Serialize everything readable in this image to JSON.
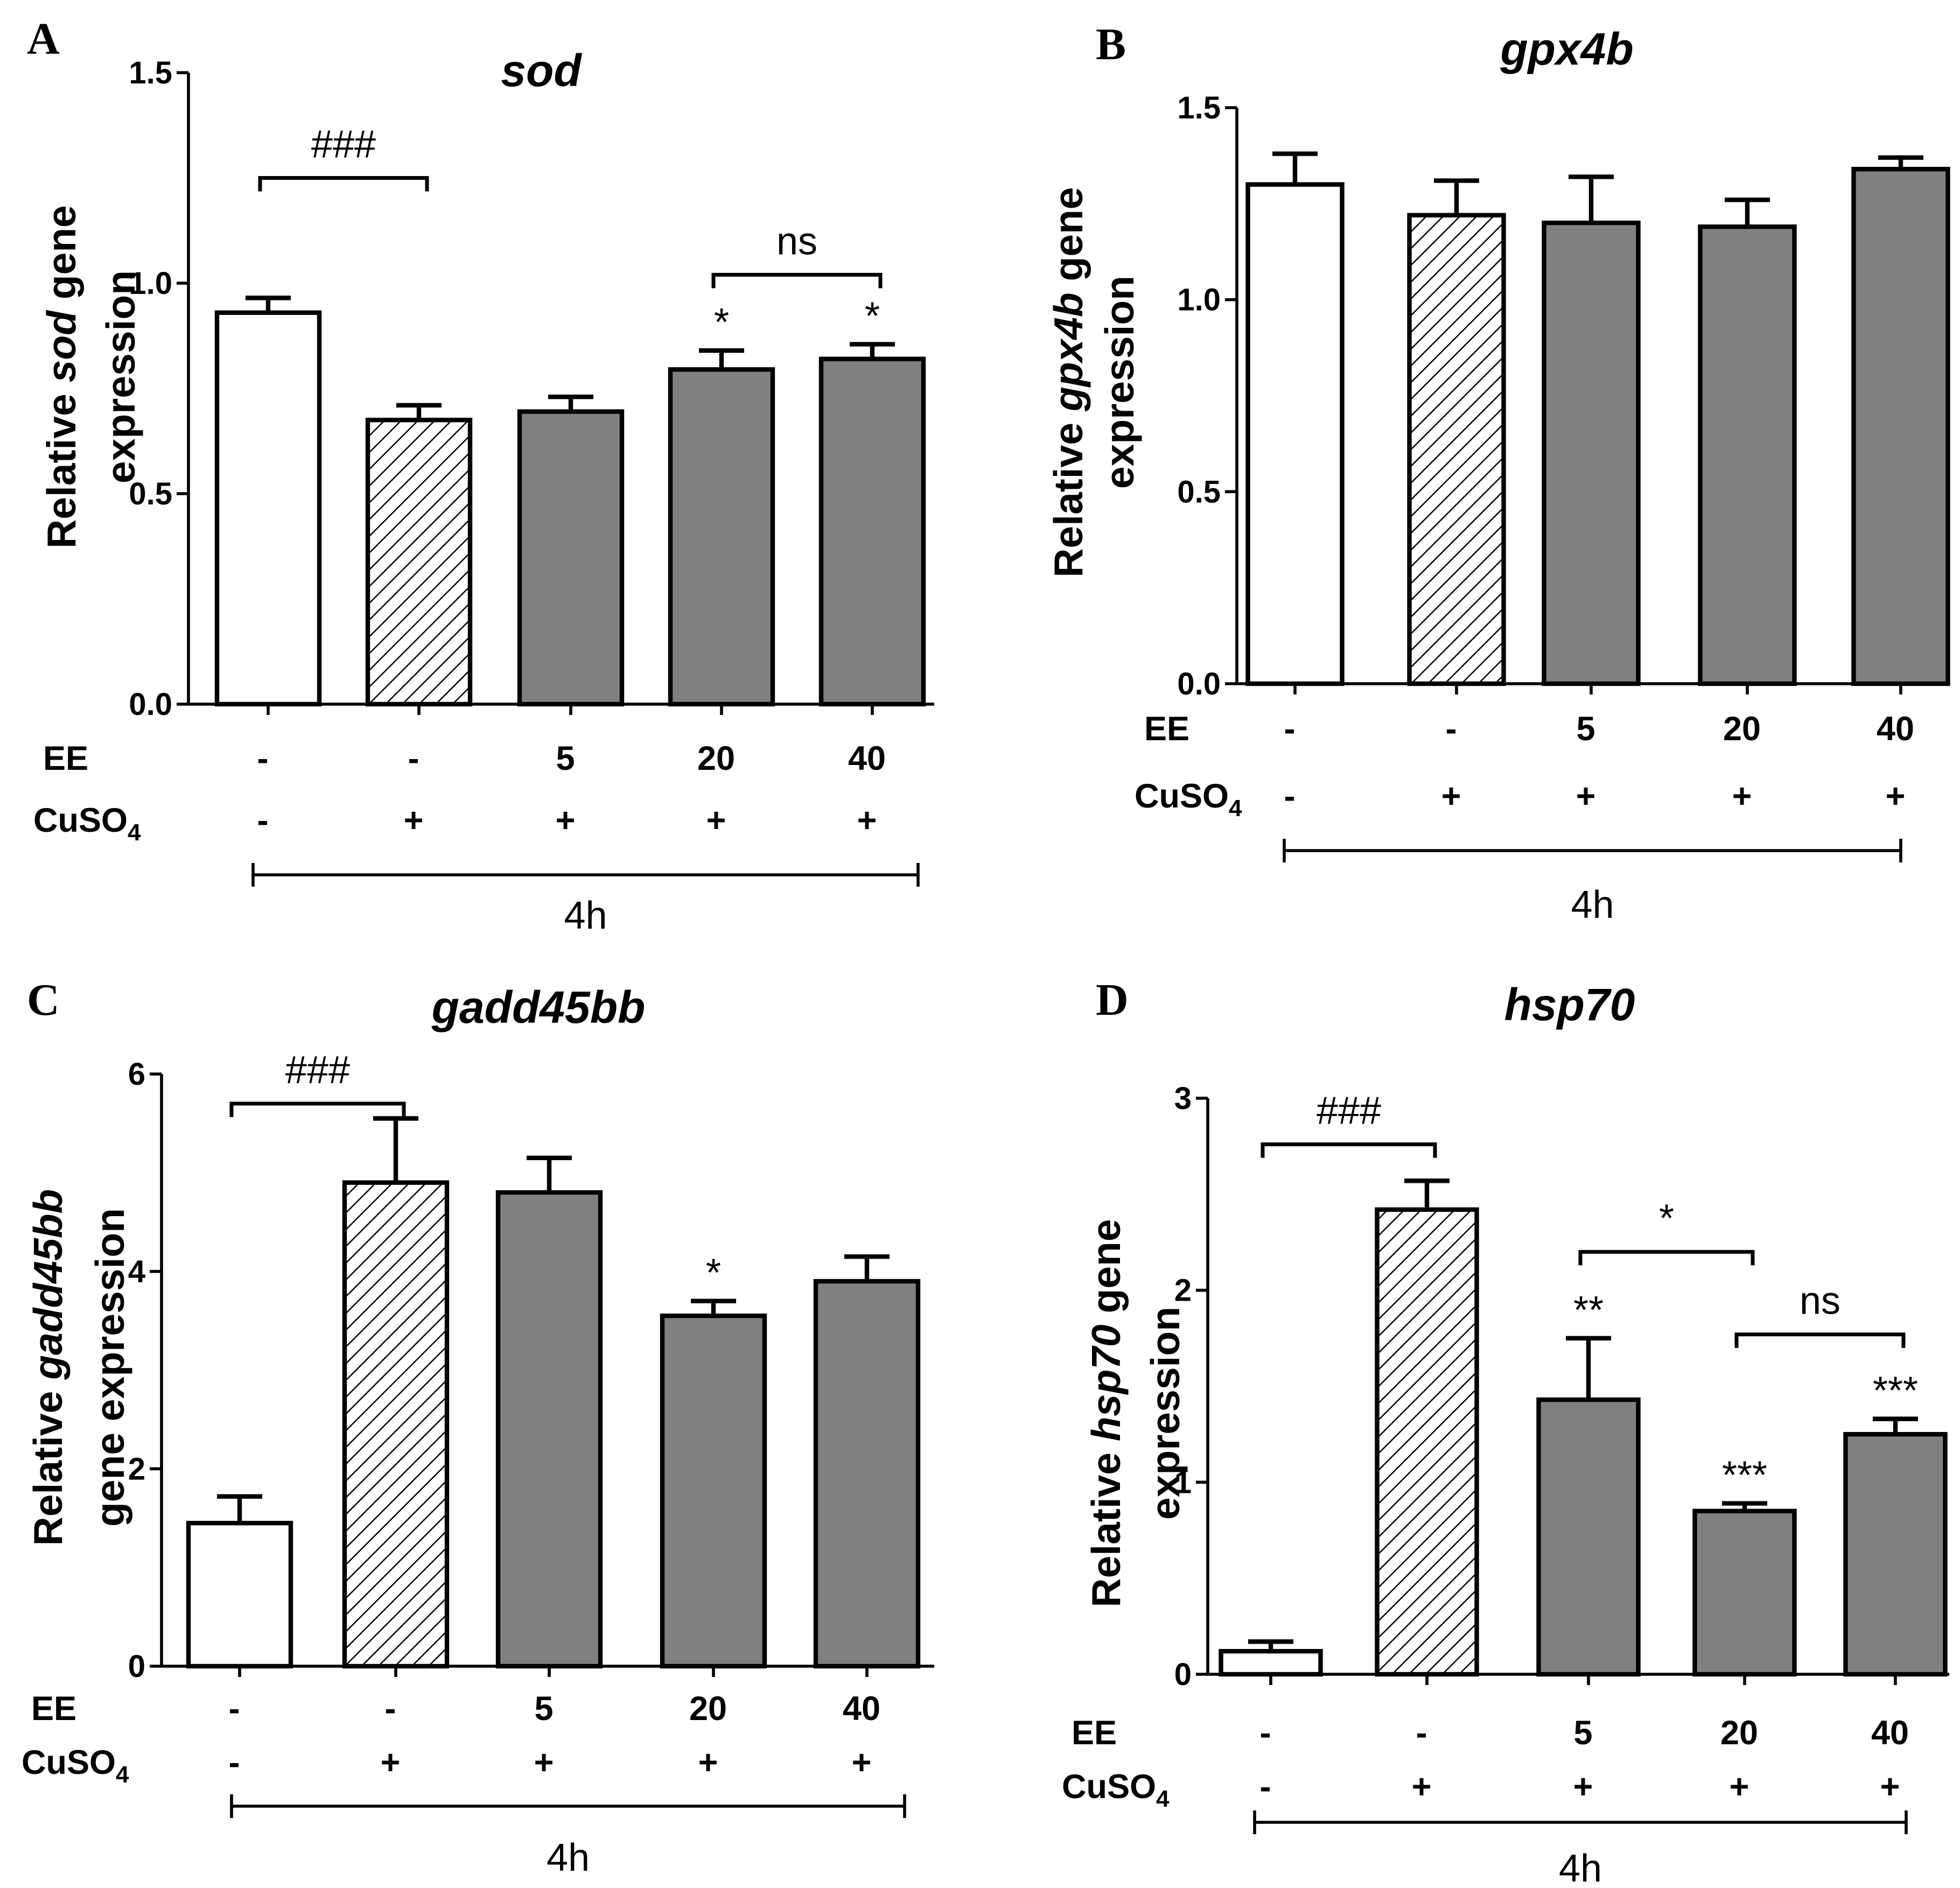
{
  "figure": {
    "x_row_labels": {
      "ee": "EE",
      "cuso4_main": "CuSO",
      "cuso4_sub": "4"
    },
    "time_label": "4h"
  },
  "colors": {
    "control": "#ffffff",
    "treated": "#808080",
    "hatch": "#000000"
  },
  "chart_data": [
    {
      "panel": "A",
      "type": "bar",
      "title": "sod",
      "ylabel_parts": [
        {
          "text": "Relative ",
          "italic": false
        },
        {
          "text": "sod",
          "italic": true
        },
        {
          "text": " gene",
          "italic": false
        }
      ],
      "ylabel_line2": "expression",
      "ylim": [
        0,
        1.5
      ],
      "yticks": [
        "0.0",
        "0.5",
        "1.0",
        "1.5"
      ],
      "ytick_values": [
        0,
        0.5,
        1.0,
        1.5
      ],
      "categories": [
        "1",
        "2",
        "3",
        "4",
        "5"
      ],
      "ee": [
        "-",
        "-",
        "5",
        "20",
        "40"
      ],
      "cuso4": [
        "-",
        "+",
        "+",
        "+",
        "+"
      ],
      "fill": [
        "white",
        "hatch",
        "gray",
        "gray",
        "gray"
      ],
      "values": [
        0.93,
        0.675,
        0.695,
        0.795,
        0.82
      ],
      "errors": [
        0.035,
        0.035,
        0.035,
        0.045,
        0.035
      ],
      "star_labels": [
        "",
        "",
        "",
        "*",
        "*"
      ],
      "brackets": [
        {
          "from": 1,
          "to": 2,
          "y": 1.25,
          "label": "###"
        },
        {
          "from": 4,
          "to": 5,
          "y": 1.02,
          "label": "ns"
        }
      ]
    },
    {
      "panel": "B",
      "type": "bar",
      "title": "gpx4b",
      "ylabel_parts": [
        {
          "text": "Relative ",
          "italic": false
        },
        {
          "text": "gpx4b",
          "italic": true
        },
        {
          "text": " gene",
          "italic": false
        }
      ],
      "ylabel_line2": "expression",
      "ylim": [
        0,
        1.5
      ],
      "yticks": [
        "0.0",
        "0.5",
        "1.0",
        "1.5"
      ],
      "ytick_values": [
        0,
        0.5,
        1.0,
        1.5
      ],
      "categories": [
        "1",
        "2",
        "3",
        "4",
        "5"
      ],
      "ee": [
        "-",
        "-",
        "5",
        "20",
        "40"
      ],
      "cuso4": [
        "-",
        "+",
        "+",
        "+",
        "+"
      ],
      "fill": [
        "white",
        "hatch",
        "gray",
        "gray",
        "gray"
      ],
      "values": [
        1.3,
        1.22,
        1.2,
        1.19,
        1.34
      ],
      "errors": [
        0.08,
        0.09,
        0.12,
        0.07,
        0.03
      ],
      "star_labels": [
        "",
        "",
        "",
        "",
        ""
      ],
      "brackets": []
    },
    {
      "panel": "C",
      "type": "bar",
      "title": "gadd45bb",
      "ylabel_parts": [
        {
          "text": "Relative ",
          "italic": false
        },
        {
          "text": "gadd45bb",
          "italic": true
        }
      ],
      "ylabel_line2": "gene expression",
      "ylim": [
        0,
        6
      ],
      "yticks": [
        "0",
        "2",
        "4",
        "6"
      ],
      "ytick_values": [
        0,
        2,
        4,
        6
      ],
      "categories": [
        "1",
        "2",
        "3",
        "4",
        "5"
      ],
      "ee": [
        "-",
        "-",
        "5",
        "20",
        "40"
      ],
      "cuso4": [
        "-",
        "+",
        "+",
        "+",
        "+"
      ],
      "fill": [
        "white",
        "hatch",
        "gray",
        "gray",
        "gray"
      ],
      "values": [
        1.45,
        4.9,
        4.8,
        3.55,
        3.9
      ],
      "errors": [
        0.27,
        0.65,
        0.35,
        0.15,
        0.25
      ],
      "star_labels": [
        "",
        "",
        "",
        "*",
        ""
      ],
      "brackets": [
        {
          "from": 1,
          "to": 2,
          "y": 5.7,
          "label": "###"
        }
      ]
    },
    {
      "panel": "D",
      "type": "bar",
      "title": "hsp70",
      "ylabel_parts": [
        {
          "text": "Relative ",
          "italic": false
        },
        {
          "text": "hsp70",
          "italic": true
        },
        {
          "text": " gene",
          "italic": false
        }
      ],
      "ylabel_line2": "expression",
      "ylim": [
        0,
        3
      ],
      "yticks": [
        "0",
        "1",
        "2",
        "3"
      ],
      "ytick_values": [
        0,
        1,
        2,
        3
      ],
      "categories": [
        "1",
        "2",
        "3",
        "4",
        "5"
      ],
      "ee": [
        "-",
        "-",
        "5",
        "20",
        "40"
      ],
      "cuso4": [
        "-",
        "+",
        "+",
        "+",
        "+"
      ],
      "fill": [
        "white",
        "hatch",
        "gray",
        "gray",
        "gray"
      ],
      "values": [
        0.12,
        2.42,
        1.43,
        0.85,
        1.25
      ],
      "errors": [
        0.05,
        0.15,
        0.32,
        0.04,
        0.08
      ],
      "star_labels": [
        "",
        "",
        "**",
        "***",
        "***"
      ],
      "brackets": [
        {
          "from": 1,
          "to": 2,
          "y": 2.76,
          "label": "###"
        },
        {
          "from": 3,
          "to": 4,
          "y": 2.2,
          "label": "*"
        },
        {
          "from": 4,
          "to": 5,
          "y": 1.77,
          "label": "ns"
        }
      ]
    }
  ]
}
